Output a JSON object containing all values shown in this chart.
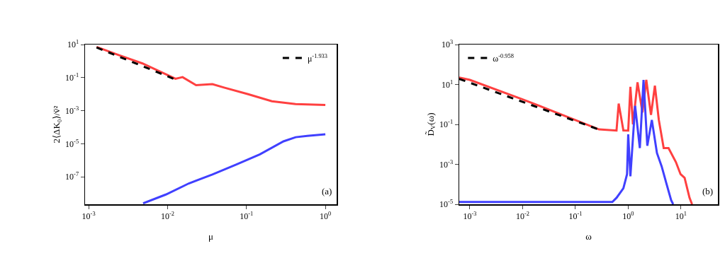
{
  "chart_data": [
    {
      "type": "line",
      "xlabel": "μ",
      "ylabel": "2⟨ΔK₀⟩/v̄²",
      "log": "xy",
      "grid": false,
      "legend": "top right",
      "marker": "none",
      "annotations": [
        "(a)"
      ],
      "xlim": [
        0.0009,
        1.39
      ],
      "ylim": [
        2.2e-09,
        10
      ],
      "xticks": [
        {
          "value": 0.001,
          "label": "10$^{-3}$"
        },
        {
          "value": 0.01,
          "label": "10$^{-2}$"
        },
        {
          "value": 0.1,
          "label": "10$^{-1}$"
        },
        {
          "value": 1,
          "label": "10$^{0}$"
        }
      ],
      "yticks": [
        {
          "value": 10,
          "label": "10$^{1}$"
        },
        {
          "value": 0.1,
          "label": "10$^{-1}$"
        },
        {
          "value": 0.001,
          "label": "10$^{-3}$"
        },
        {
          "value": 1e-05,
          "label": "10$^{-5}$"
        },
        {
          "value": 1e-07,
          "label": "10$^{-7}$"
        }
      ],
      "series": [
        {
          "color": "#ff4040",
          "line_style": "solid",
          "x": [
            0.00126,
            0.0024,
            0.0048,
            0.0126,
            0.0155,
            0.023,
            0.037,
            0.052,
            0.105,
            0.21,
            0.42,
            1.0
          ],
          "values": [
            7.2,
            2.3,
            0.72,
            0.085,
            0.107,
            0.035,
            0.04,
            0.025,
            0.01,
            0.0037,
            0.0025,
            0.0022
          ]
        },
        {
          "color": "#4040ff",
          "line_style": "solid",
          "x": [
            0.0049,
            0.0095,
            0.0186,
            0.037,
            0.074,
            0.148,
            0.295,
            0.42,
            0.59,
            1.0
          ],
          "values": [
            2.5e-09,
            8.5e-09,
            4e-08,
            1.4e-07,
            5.5e-07,
            2.3e-06,
            1.4e-05,
            2.5e-05,
            3e-05,
            3.7e-05
          ]
        },
        {
          "name": "μ$^{-1.933}$",
          "color": "#000000",
          "line_style": "dashed",
          "x": [
            0.00126,
            0.0126
          ],
          "values": [
            6.6,
            0.077
          ]
        }
      ]
    },
    {
      "type": "line",
      "xlabel": "ω",
      "ylabel": "D̃$_{V}$(ω)",
      "log": "xy",
      "grid": false,
      "legend": "top left",
      "marker": "none",
      "annotations": [
        "(b)"
      ],
      "xlim": [
        0.00063,
        50
      ],
      "ylim": [
        1e-05,
        1000
      ],
      "xticks": [
        {
          "value": 0.001,
          "label": "10$^{-3}$"
        },
        {
          "value": 0.01,
          "label": "10$^{-2}$"
        },
        {
          "value": 0.1,
          "label": "10$^{-1}$"
        },
        {
          "value": 1,
          "label": "10$^{0}$"
        },
        {
          "value": 10,
          "label": "10$^{1}$"
        }
      ],
      "yticks": [
        {
          "value": 1000,
          "label": "10$^{3}$"
        },
        {
          "value": 10,
          "label": "10$^{1}$"
        },
        {
          "value": 0.1,
          "label": "10$^{-1}$"
        },
        {
          "value": 0.001,
          "label": "10$^{-3}$"
        },
        {
          "value": 1e-05,
          "label": "10$^{-5}$"
        }
      ],
      "series": [
        {
          "color": "#ff4040",
          "line_style": "solid",
          "x": [
            0.00063,
            0.001,
            0.01,
            0.1,
            0.28,
            0.6,
            0.66,
            0.81,
            1.0,
            1.1,
            1.23,
            1.5,
            1.86,
            2.2,
            2.7,
            3.2,
            3.8,
            4.7,
            5.8,
            8,
            9.8,
            11.7,
            14.5,
            16.2
          ],
          "values": [
            22,
            17,
            1.8,
            0.166,
            0.056,
            0.049,
            1.1,
            0.05,
            0.049,
            7.6,
            0.1,
            12.9,
            0.4,
            17,
            0.3,
            8.7,
            0.166,
            0.0065,
            0.0065,
            0.0013,
            0.00032,
            0.00021,
            2.1e-05,
            1e-05
          ]
        },
        {
          "color": "#4040ff",
          "line_style": "solid",
          "x": [
            0.00063,
            0.1,
            0.5,
            0.6,
            0.81,
            0.95,
            1.0,
            1.1,
            1.35,
            1.66,
            1.95,
            2.3,
            2.8,
            3.5,
            4.3,
            5.2,
            6.5,
            7.1
          ],
          "values": [
            1.3e-05,
            1.3e-05,
            1.3e-05,
            2.1e-05,
            6.3e-05,
            0.00032,
            0.032,
            0.00025,
            0.85,
            0.0065,
            17,
            0.0085,
            0.166,
            0.0037,
            0.00079,
            0.00013,
            1.6e-05,
            1e-05
          ]
        },
        {
          "name": "ω$^{-0.958}$",
          "color": "#000000",
          "line_style": "dashed",
          "x": [
            0.00063,
            0.28
          ],
          "values": [
            19,
            0.055
          ]
        }
      ]
    }
  ]
}
